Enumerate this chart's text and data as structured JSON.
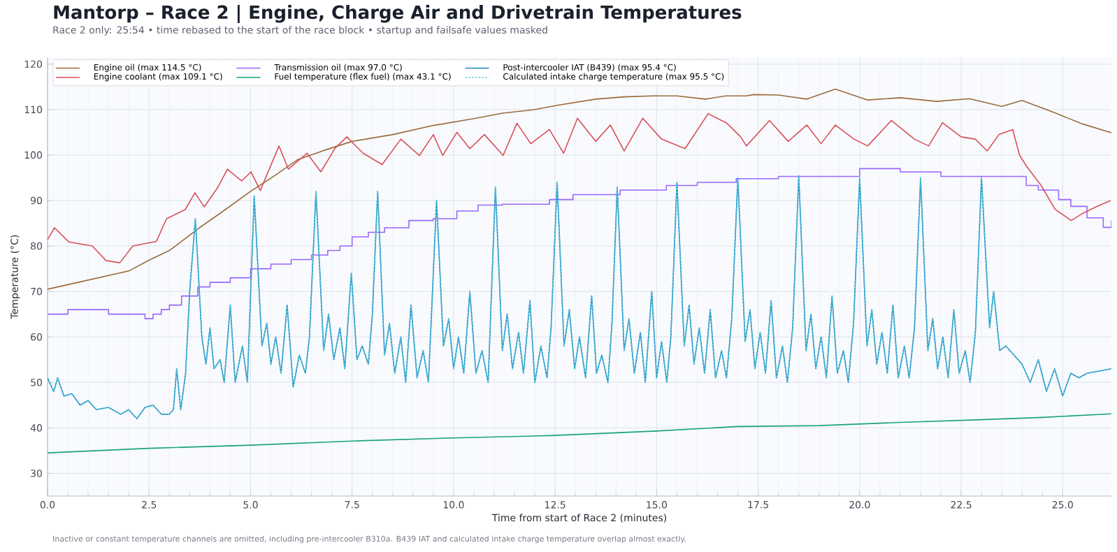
{
  "chart_data": {
    "type": "line",
    "title": "Mantorp – Race 2 | Engine, Charge Air and Drivetrain Temperatures",
    "subtitle": "Race 2 only: 25:54  •  time rebased to the start of the race block  •  startup and failsafe values masked",
    "xlabel": "Time from start of Race 2 (minutes)",
    "ylabel": "Temperature (°C)",
    "annotations": [
      "Inactive or constant temperature channels are omitted, including pre-intercooler B310a. B439 IAT and calculated intake charge temperature overlap almost exactly."
    ],
    "xlim": [
      0,
      26.2
    ],
    "ylim": [
      25,
      121.5
    ],
    "xticks": [
      {
        "value": 0,
        "label": "0.0"
      },
      2.5,
      {
        "value": 5,
        "label": "5.0"
      },
      7.5,
      {
        "value": 10,
        "label": "10.0"
      },
      12.5,
      {
        "value": 15,
        "label": "15.0"
      },
      17.5,
      {
        "value": 20,
        "label": "20.0"
      },
      22.5,
      {
        "value": 25,
        "label": "25.0"
      }
    ],
    "yticks": [
      30,
      40,
      50,
      60,
      70,
      80,
      90,
      100,
      110,
      120
    ],
    "grid": true,
    "legend": "top left",
    "series": [
      {
        "name": "Engine oil (max 114.5 °C)",
        "color": "#9c6b3c",
        "x": [
          0,
          0.5,
          1,
          1.5,
          2,
          2.53,
          3,
          3.74,
          4.3,
          5,
          5.6,
          6.16,
          6.8,
          7.5,
          8.5,
          9.5,
          10.5,
          11.2,
          12,
          12.6,
          13.5,
          14.2,
          14.9,
          15.5,
          16.2,
          16.7,
          17.2,
          17.4,
          18,
          18.7,
          19.4,
          20.2,
          21,
          21.9,
          22.7,
          23.5,
          24,
          24.8,
          25.5,
          26.2
        ],
        "values": [
          70.5,
          71.5,
          72.5,
          73.5,
          74.5,
          77,
          79,
          84,
          87.5,
          92,
          95.5,
          99,
          101,
          103,
          104.5,
          106.5,
          108,
          109.2,
          110,
          111,
          112.3,
          112.8,
          113,
          113,
          112.3,
          113,
          113,
          113.3,
          113.2,
          112.3,
          114.5,
          112.1,
          112.6,
          111.8,
          112.4,
          110.7,
          112,
          109.3,
          106.8,
          104.9
        ]
      },
      {
        "name": "Engine coolant (max 109.1 °C)",
        "color": "#d9505a",
        "x": [
          0,
          0.17,
          0.52,
          1.1,
          1.44,
          1.78,
          2.1,
          2.68,
          2.93,
          3.39,
          3.63,
          3.86,
          4.2,
          4.43,
          4.78,
          5.01,
          5.24,
          5.7,
          5.93,
          6.39,
          6.73,
          7.08,
          7.37,
          7.77,
          8.24,
          8.7,
          9.16,
          9.5,
          9.73,
          10.08,
          10.4,
          10.76,
          11.22,
          11.56,
          11.9,
          12.36,
          12.71,
          13.05,
          13.5,
          13.86,
          14.2,
          14.66,
          15.12,
          15.7,
          16.27,
          16.73,
          17.07,
          17.21,
          17.78,
          18.24,
          18.7,
          19.05,
          19.4,
          19.86,
          20.2,
          20.78,
          21.35,
          21.7,
          22.04,
          22.5,
          22.85,
          23.14,
          23.43,
          23.77,
          23.94,
          24.12,
          24.47,
          24.81,
          25.21,
          25.5,
          25.84,
          26.18
        ],
        "values": [
          81.4,
          84,
          80.9,
          80,
          76.8,
          76.3,
          80,
          81,
          86,
          88,
          91.7,
          88.6,
          93,
          96.9,
          94.3,
          96.3,
          92.2,
          102,
          96.9,
          100.4,
          96.3,
          101.5,
          104,
          100.4,
          97.9,
          103.5,
          99.9,
          104.5,
          99.9,
          105,
          101.4,
          104.5,
          99.9,
          107,
          102.5,
          105.6,
          100.4,
          108.1,
          103,
          106.6,
          100.9,
          108.1,
          103.5,
          101.4,
          109.1,
          107,
          104,
          102,
          107.6,
          103,
          106.6,
          102.5,
          106.6,
          103.5,
          102,
          107.6,
          103.5,
          102,
          107.1,
          104,
          103.5,
          100.9,
          104.5,
          105.6,
          99.9,
          97.4,
          93.3,
          88.1,
          85.6,
          87.2,
          88.7,
          90
        ]
      },
      {
        "name": "Transmission oil (max 97.0 °C)",
        "color": "#9966ff",
        "type": "step",
        "x": [
          0,
          0.5,
          1,
          1.5,
          2,
          2.4,
          2.6,
          2.8,
          3.0,
          3.3,
          3.7,
          4.0,
          4.5,
          5.0,
          5.5,
          6.0,
          6.5,
          6.9,
          7.2,
          7.5,
          7.9,
          8.3,
          8.9,
          9.5,
          10.08,
          10.6,
          11.2,
          12.36,
          12.94,
          14.1,
          15.24,
          16.0,
          16.96,
          18,
          19,
          20,
          21,
          22,
          23,
          23.5,
          24.1,
          24.4,
          24.9,
          25.2,
          25.6,
          26.0,
          26.2
        ],
        "values": [
          65,
          66,
          66,
          65,
          65,
          64,
          65,
          66,
          67,
          69,
          71,
          72,
          73,
          75,
          76,
          77,
          78,
          79,
          80,
          82,
          83,
          84,
          85.6,
          86,
          87.7,
          89,
          89.2,
          90.2,
          91.3,
          92.3,
          93.3,
          94,
          94.8,
          95.3,
          95.3,
          97,
          96.3,
          95.3,
          95.3,
          95.3,
          93.3,
          92.3,
          90.2,
          88.7,
          86.2,
          84.1,
          85.6
        ]
      },
      {
        "name": "Fuel temperature (flex fuel) (max 43.1 °C)",
        "color": "#1aa37a",
        "x": [
          0,
          2.5,
          5,
          7.8,
          10,
          12.4,
          15,
          17,
          19,
          21,
          23,
          24.5,
          26.2
        ],
        "values": [
          34.5,
          35.5,
          36.2,
          37.2,
          37.8,
          38.3,
          39.3,
          40.3,
          40.5,
          41.2,
          41.8,
          42.3,
          43.1
        ]
      },
      {
        "name": "Post-intercooler IAT (B439) (max 95.4 °C)",
        "color": "#1a8ac0",
        "x": [
          0,
          0.15,
          0.25,
          0.4,
          0.6,
          0.8,
          1.0,
          1.2,
          1.5,
          1.8,
          2.0,
          2.2,
          2.4,
          2.6,
          2.8,
          3.0,
          3.1,
          3.18,
          3.28,
          3.4,
          3.5,
          3.64,
          3.8,
          3.9,
          4.0,
          4.1,
          4.25,
          4.35,
          4.5,
          4.62,
          4.8,
          4.92,
          5.09,
          5.28,
          5.4,
          5.5,
          5.62,
          5.75,
          5.9,
          6.05,
          6.2,
          6.35,
          6.45,
          6.61,
          6.8,
          6.92,
          7.05,
          7.2,
          7.32,
          7.48,
          7.62,
          7.75,
          7.9,
          8.0,
          8.13,
          8.3,
          8.42,
          8.55,
          8.7,
          8.82,
          8.95,
          9.1,
          9.25,
          9.38,
          9.58,
          9.75,
          9.88,
          10.0,
          10.12,
          10.25,
          10.4,
          10.55,
          10.7,
          10.85,
          11.03,
          11.2,
          11.32,
          11.45,
          11.6,
          11.72,
          11.88,
          12.0,
          12.15,
          12.3,
          12.4,
          12.55,
          12.72,
          12.85,
          12.98,
          13.1,
          13.25,
          13.4,
          13.52,
          13.65,
          13.8,
          13.9,
          14.03,
          14.2,
          14.32,
          14.45,
          14.6,
          14.72,
          14.88,
          15.0,
          15.12,
          15.25,
          15.35,
          15.5,
          15.68,
          15.8,
          15.92,
          16.05,
          16.18,
          16.32,
          16.45,
          16.6,
          16.72,
          16.85,
          17.0,
          17.18,
          17.3,
          17.42,
          17.55,
          17.68,
          17.82,
          17.95,
          18.1,
          18.22,
          18.35,
          18.5,
          18.68,
          18.8,
          18.92,
          19.05,
          19.18,
          19.32,
          19.45,
          19.6,
          19.72,
          19.85,
          20.0,
          20.18,
          20.3,
          20.42,
          20.55,
          20.68,
          20.82,
          20.95,
          21.1,
          21.22,
          21.35,
          21.5,
          21.68,
          21.8,
          21.92,
          22.05,
          22.18,
          22.32,
          22.45,
          22.6,
          22.72,
          22.85,
          23.0,
          23.2,
          23.3,
          23.45,
          23.6,
          23.8,
          24.0,
          24.2,
          24.4,
          24.6,
          24.8,
          25.0,
          25.2,
          25.4,
          25.6,
          25.9,
          26.2
        ],
        "values": [
          51,
          48,
          51,
          47,
          47.5,
          45,
          46,
          44,
          44.5,
          43,
          44,
          42,
          44.5,
          45,
          43,
          43,
          44,
          53,
          44,
          52,
          70,
          86,
          60,
          54,
          62,
          53,
          55,
          50,
          67,
          50,
          58,
          50,
          91,
          58,
          63,
          54,
          60,
          52,
          67,
          49,
          56,
          52,
          60,
          92,
          57,
          65,
          55,
          62,
          53,
          74,
          55,
          58,
          54,
          65,
          92,
          56,
          63,
          52,
          60,
          50,
          67,
          51,
          57,
          50,
          90,
          58,
          64,
          53,
          60,
          52,
          70,
          52,
          57,
          50,
          93,
          57,
          65,
          53,
          61,
          52,
          68,
          50,
          58,
          51,
          62,
          94,
          58,
          66,
          53,
          60,
          51,
          69,
          52,
          56,
          50,
          63,
          93,
          57,
          64,
          52,
          61,
          50,
          70,
          51,
          59,
          50,
          60,
          94,
          58,
          67,
          54,
          62,
          52,
          66,
          51,
          57,
          51,
          64,
          95,
          59,
          66,
          53,
          61,
          52,
          68,
          51,
          58,
          50,
          62,
          95.4,
          57,
          65,
          53,
          60,
          51,
          69,
          52,
          57,
          50,
          63,
          95,
          58,
          66,
          54,
          61,
          52,
          67,
          51,
          58,
          51,
          62,
          95,
          57,
          64,
          53,
          60,
          51,
          66,
          52,
          57,
          50,
          61,
          95,
          62,
          70,
          57,
          58,
          56,
          54,
          50,
          55,
          48,
          53,
          47,
          52,
          51,
          52,
          52.5,
          53
        ]
      },
      {
        "name": "Calculated intake charge temperature (max 95.5 °C)",
        "color": "#5cc8e0",
        "line_style": "dotted",
        "x": [
          0,
          0.15,
          0.25,
          0.4,
          0.6,
          0.8,
          1.0,
          1.2,
          1.5,
          1.8,
          2.0,
          2.2,
          2.4,
          2.6,
          2.8,
          3.0,
          3.1,
          3.18,
          3.28,
          3.4,
          3.5,
          3.64,
          3.8,
          3.9,
          4.0,
          4.1,
          4.25,
          4.35,
          4.5,
          4.62,
          4.8,
          4.92,
          5.09,
          5.28,
          5.4,
          5.5,
          5.62,
          5.75,
          5.9,
          6.05,
          6.2,
          6.35,
          6.45,
          6.61,
          6.8,
          6.92,
          7.05,
          7.2,
          7.32,
          7.48,
          7.62,
          7.75,
          7.9,
          8.0,
          8.13,
          8.3,
          8.42,
          8.55,
          8.7,
          8.82,
          8.95,
          9.1,
          9.25,
          9.38,
          9.58,
          9.75,
          9.88,
          10.0,
          10.12,
          10.25,
          10.4,
          10.55,
          10.7,
          10.85,
          11.03,
          11.2,
          11.32,
          11.45,
          11.6,
          11.72,
          11.88,
          12.0,
          12.15,
          12.3,
          12.4,
          12.55,
          12.72,
          12.85,
          12.98,
          13.1,
          13.25,
          13.4,
          13.52,
          13.65,
          13.8,
          13.9,
          14.03,
          14.2,
          14.32,
          14.45,
          14.6,
          14.72,
          14.88,
          15.0,
          15.12,
          15.25,
          15.35,
          15.5,
          15.68,
          15.8,
          15.92,
          16.05,
          16.18,
          16.32,
          16.45,
          16.6,
          16.72,
          16.85,
          17.0,
          17.18,
          17.3,
          17.42,
          17.55,
          17.68,
          17.82,
          17.95,
          18.1,
          18.22,
          18.35,
          18.5,
          18.68,
          18.8,
          18.92,
          19.05,
          19.18,
          19.32,
          19.45,
          19.6,
          19.72,
          19.85,
          20.0,
          20.18,
          20.3,
          20.42,
          20.55,
          20.68,
          20.82,
          20.95,
          21.1,
          21.22,
          21.35,
          21.5,
          21.68,
          21.8,
          21.92,
          22.05,
          22.18,
          22.32,
          22.45,
          22.6,
          22.72,
          22.85,
          23.0,
          23.2,
          23.3,
          23.45,
          23.6,
          23.8,
          24.0,
          24.2,
          24.4,
          24.6,
          24.8,
          25.0,
          25.2,
          25.4,
          25.6,
          25.9,
          26.2
        ],
        "values": [
          51,
          48,
          51,
          47,
          47.5,
          45,
          46,
          44,
          44.5,
          43,
          44,
          42,
          44.5,
          45,
          43,
          43,
          44,
          53,
          44,
          52,
          70,
          86,
          60,
          54,
          62,
          53,
          55,
          50,
          67,
          50,
          58,
          50,
          91,
          58,
          63,
          54,
          60,
          52,
          67,
          49,
          56,
          52,
          60,
          92,
          57,
          65,
          55,
          62,
          53,
          74,
          55,
          58,
          54,
          65,
          92,
          56,
          63,
          52,
          60,
          50,
          67,
          51,
          57,
          50,
          90,
          58,
          64,
          53,
          60,
          52,
          70,
          52,
          57,
          50,
          93,
          57,
          65,
          53,
          61,
          52,
          68,
          50,
          58,
          51,
          62,
          94,
          58,
          66,
          53,
          60,
          51,
          69,
          52,
          56,
          50,
          63,
          93,
          57,
          64,
          52,
          61,
          50,
          70,
          51,
          59,
          50,
          60,
          94,
          58,
          67,
          54,
          62,
          52,
          66,
          51,
          57,
          51,
          64,
          95,
          59,
          66,
          53,
          61,
          52,
          68,
          51,
          58,
          50,
          62,
          95.5,
          57,
          65,
          53,
          60,
          51,
          69,
          52,
          57,
          50,
          63,
          95,
          58,
          66,
          54,
          61,
          52,
          67,
          51,
          58,
          51,
          62,
          95,
          57,
          64,
          53,
          60,
          51,
          66,
          52,
          57,
          50,
          61,
          95,
          62,
          70,
          57,
          58,
          56,
          54,
          50,
          55,
          48,
          53,
          47,
          52,
          51,
          52,
          52.5,
          53
        ]
      }
    ]
  }
}
